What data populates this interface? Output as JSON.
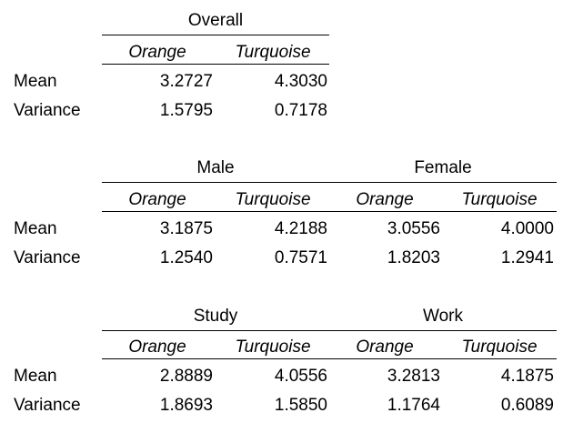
{
  "row_labels": {
    "mean": "Mean",
    "variance": "Variance"
  },
  "tables": [
    {
      "groups": [
        {
          "title": "Overall",
          "columns": [
            "Orange",
            "Turquoise"
          ],
          "mean": [
            "3.2727",
            "4.3030"
          ],
          "variance": [
            "1.5795",
            "0.7178"
          ]
        }
      ]
    },
    {
      "groups": [
        {
          "title": "Male",
          "columns": [
            "Orange",
            "Turquoise"
          ],
          "mean": [
            "3.1875",
            "4.2188"
          ],
          "variance": [
            "1.2540",
            "0.7571"
          ]
        },
        {
          "title": "Female",
          "columns": [
            "Orange",
            "Turquoise"
          ],
          "mean": [
            "3.0556",
            "4.0000"
          ],
          "variance": [
            "1.8203",
            "1.2941"
          ]
        }
      ]
    },
    {
      "groups": [
        {
          "title": "Study",
          "columns": [
            "Orange",
            "Turquoise"
          ],
          "mean": [
            "2.8889",
            "4.0556"
          ],
          "variance": [
            "1.8693",
            "1.5850"
          ]
        },
        {
          "title": "Work",
          "columns": [
            "Orange",
            "Turquoise"
          ],
          "mean": [
            "3.2813",
            "4.1875"
          ],
          "variance": [
            "1.1764",
            "0.6089"
          ]
        }
      ]
    }
  ]
}
